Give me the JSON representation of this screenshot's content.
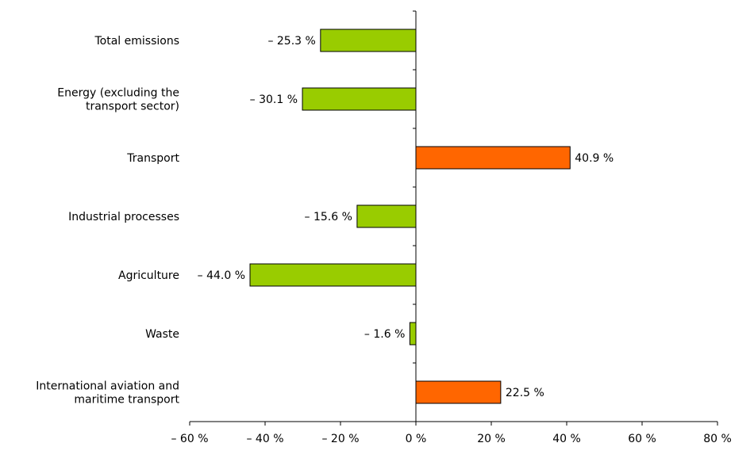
{
  "chart_data": {
    "type": "bar",
    "orientation": "horizontal",
    "categories": [
      [
        "Total emissions"
      ],
      [
        "Energy (excluding the",
        "transport sector)"
      ],
      [
        "Transport"
      ],
      [
        "Industrial processes"
      ],
      [
        "Agriculture"
      ],
      [
        "Waste"
      ],
      [
        "International aviation and",
        "maritime transport"
      ]
    ],
    "values": [
      -25.3,
      -30.1,
      40.9,
      -15.6,
      -44.0,
      -1.6,
      22.5
    ],
    "value_labels": [
      "– 25.3 %",
      "– 30.1 %",
      "40.9 %",
      "– 15.6 %",
      "– 44.0 %",
      "– 1.6 %",
      "22.5 %"
    ],
    "xlim": [
      -60,
      80
    ],
    "xticks": [
      -60,
      -40,
      -20,
      0,
      20,
      40,
      60,
      80
    ],
    "xtick_labels": [
      "– 60 %",
      "– 40 %",
      "– 20 %",
      "0 %",
      "20 %",
      "40 %",
      "60 %",
      "80 %"
    ],
    "title": "",
    "xlabel": "",
    "ylabel": "",
    "grid": false,
    "legend": "none",
    "colors": {
      "negative": "#99cc00",
      "positive": "#ff6600",
      "axis": "#000000"
    }
  }
}
